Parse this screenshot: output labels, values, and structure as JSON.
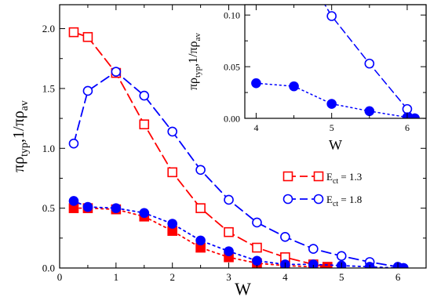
{
  "chart_data": [
    {
      "type": "line",
      "xlabel": "W",
      "ylabel": {
        "base1": "πρ",
        "sub1": "typ",
        "mid": ",1/πρ",
        "sub2": "av"
      },
      "xlim": [
        0,
        6.5
      ],
      "ylim": [
        0,
        2.2
      ],
      "xticks": [
        0,
        1,
        2,
        3,
        4,
        5,
        6
      ],
      "yticks": [
        0.0,
        0.5,
        1.0,
        1.5,
        2.0
      ],
      "ytick_labels": [
        "0.0",
        "0.5",
        "1.0",
        "1.5",
        "2.0"
      ],
      "legend": {
        "placement": "right",
        "entries": [
          {
            "prefix": "E",
            "sub": "ct",
            "suffix": " = 1.3",
            "color": "#ff0000",
            "marker": "square"
          },
          {
            "prefix": "E",
            "sub": "ct",
            "suffix": " = 1.8",
            "color": "#0000ff",
            "marker": "circle"
          }
        ]
      },
      "series": [
        {
          "quantity": "typ",
          "ect": "1.3",
          "color": "#ff0000",
          "marker": "square-open",
          "line": "dashed",
          "x": [
            0.25,
            0.5,
            1.0,
            1.5,
            2.0,
            2.5,
            3.0,
            3.5,
            4.0,
            4.5,
            4.75
          ],
          "y": [
            1.97,
            1.93,
            1.63,
            1.2,
            0.8,
            0.5,
            0.3,
            0.17,
            0.09,
            0.03,
            0.01
          ]
        },
        {
          "quantity": "typ",
          "ect": "1.8",
          "color": "#0000ff",
          "marker": "circle-open",
          "line": "dashed",
          "x": [
            0.25,
            0.5,
            1.0,
            1.5,
            2.0,
            2.5,
            3.0,
            3.5,
            4.0,
            4.5,
            5.0,
            5.5,
            6.0,
            6.1
          ],
          "y": [
            1.04,
            1.48,
            1.64,
            1.44,
            1.14,
            0.82,
            0.57,
            0.38,
            0.26,
            0.16,
            0.1,
            0.05,
            0.01,
            0.0
          ]
        },
        {
          "quantity": "av",
          "ect": "1.3",
          "color": "#ff0000",
          "marker": "square-filled",
          "line": "dotted",
          "x": [
            0.25,
            0.5,
            1.0,
            1.5,
            2.0,
            2.5,
            3.0,
            3.5,
            4.0,
            4.5,
            4.75
          ],
          "y": [
            0.5,
            0.5,
            0.49,
            0.43,
            0.31,
            0.17,
            0.09,
            0.04,
            0.02,
            0.01,
            0.005
          ]
        },
        {
          "quantity": "av",
          "ect": "1.8",
          "color": "#0000ff",
          "marker": "circle-filled",
          "line": "dotted",
          "x": [
            0.25,
            0.5,
            1.0,
            1.5,
            2.0,
            2.5,
            3.0,
            3.5,
            4.0,
            4.5,
            5.0,
            5.5,
            6.0,
            6.1
          ],
          "y": [
            0.56,
            0.51,
            0.5,
            0.46,
            0.37,
            0.23,
            0.14,
            0.06,
            0.03,
            0.03,
            0.02,
            0.01,
            0.0,
            0.0
          ]
        }
      ]
    },
    {
      "type": "line",
      "role": "inset",
      "xlabel": "W",
      "ylabel": {
        "base1": "πρ",
        "sub1": "typ",
        "mid": ",1/πρ",
        "sub2": "av"
      },
      "xlim": [
        3.85,
        6.25
      ],
      "ylim": [
        0,
        0.11
      ],
      "xticks": [
        4,
        5,
        6
      ],
      "yticks": [
        0.0,
        0.05,
        0.1
      ],
      "ytick_labels": [
        "0.00",
        "0.05",
        "0.10"
      ],
      "series": [
        {
          "quantity": "typ",
          "ect": "1.8",
          "color": "#0000ff",
          "marker": "circle-open",
          "line": "dashed",
          "x": [
            4.5,
            5.0,
            5.5,
            6.0,
            6.1
          ],
          "y": [
            0.16,
            0.099,
            0.053,
            0.009,
            0.0
          ]
        },
        {
          "quantity": "av",
          "ect": "1.8",
          "color": "#0000ff",
          "marker": "circle-filled",
          "line": "dotted",
          "x": [
            4.0,
            4.5,
            5.0,
            5.5,
            6.0,
            6.1
          ],
          "y": [
            0.034,
            0.031,
            0.014,
            0.007,
            0.001,
            0.0
          ]
        }
      ]
    }
  ]
}
